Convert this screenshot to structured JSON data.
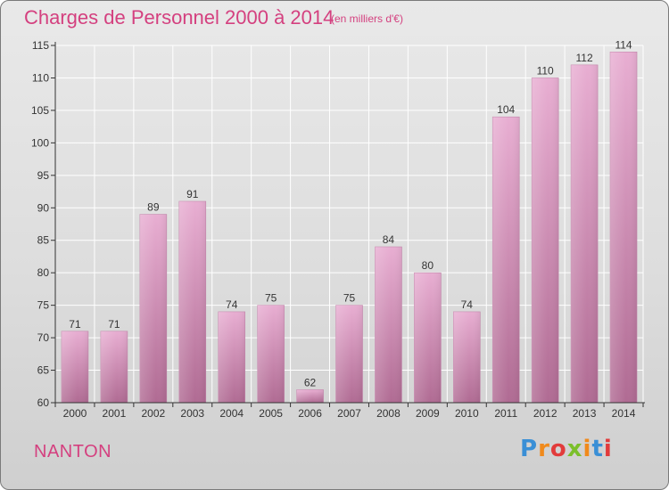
{
  "title": "Charges de Personnel 2000 à 2014",
  "subtitle": "(en milliers d'€)",
  "commune": "NANTON",
  "logo": {
    "text": "Proxiti",
    "brand": "Proxiti"
  },
  "colors": {
    "accent": "#d4407f",
    "bar_top": "#e6a6cc",
    "bar_bottom": "#b06b93"
  },
  "chart_data": {
    "type": "bar",
    "categories": [
      "2000",
      "2001",
      "2002",
      "2003",
      "2004",
      "2005",
      "2006",
      "2007",
      "2008",
      "2009",
      "2010",
      "2011",
      "2012",
      "2013",
      "2014"
    ],
    "values": [
      71,
      71,
      89,
      91,
      74,
      75,
      62,
      75,
      84,
      80,
      74,
      104,
      110,
      112,
      114
    ],
    "title": "Charges de Personnel 2000 à 2014",
    "subtitle": "(en milliers d'€)",
    "xlabel": "",
    "ylabel": "",
    "ylim": [
      60,
      115
    ],
    "yticks": [
      60,
      65,
      70,
      75,
      80,
      85,
      90,
      95,
      100,
      105,
      110,
      115
    ],
    "grid": true,
    "data_labels": true
  }
}
